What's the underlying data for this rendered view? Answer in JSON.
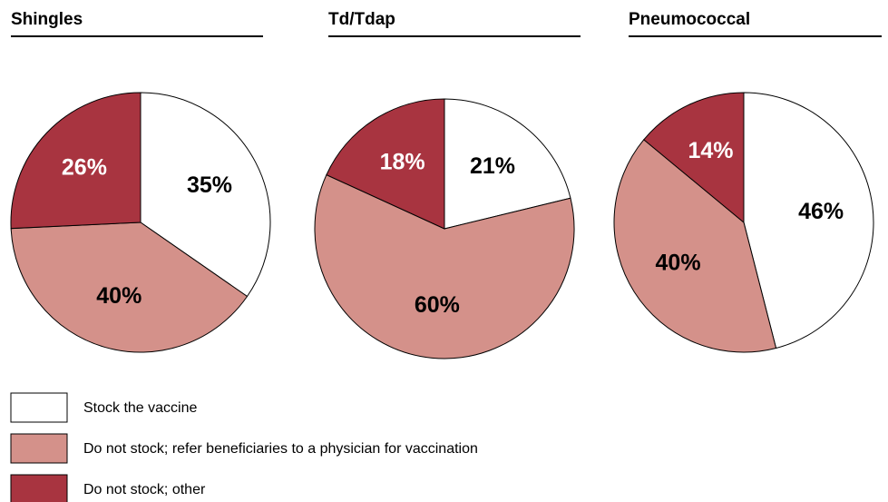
{
  "chart_data": [
    {
      "type": "pie",
      "title": "Shingles",
      "values": [
        35,
        40,
        26
      ],
      "value_labels": [
        "35%",
        "40%",
        "26%"
      ]
    },
    {
      "type": "pie",
      "title": "Td/Tdap",
      "values": [
        21,
        60,
        18
      ],
      "value_labels": [
        "21%",
        "60%",
        "18%"
      ]
    },
    {
      "type": "pie",
      "title": "Pneumococcal",
      "values": [
        46,
        40,
        14
      ],
      "value_labels": [
        "46%",
        "40%",
        "14%"
      ]
    }
  ],
  "legend": {
    "labels": [
      "Stock the vaccine",
      "Do not stock; refer beneficiaries to a physician for vaccination",
      "Do not stock; other"
    ],
    "colors": [
      "#ffffff",
      "#d4918a",
      "#a83440"
    ],
    "label_colors": [
      "#000000",
      "#000000",
      "#ffffff"
    ]
  }
}
